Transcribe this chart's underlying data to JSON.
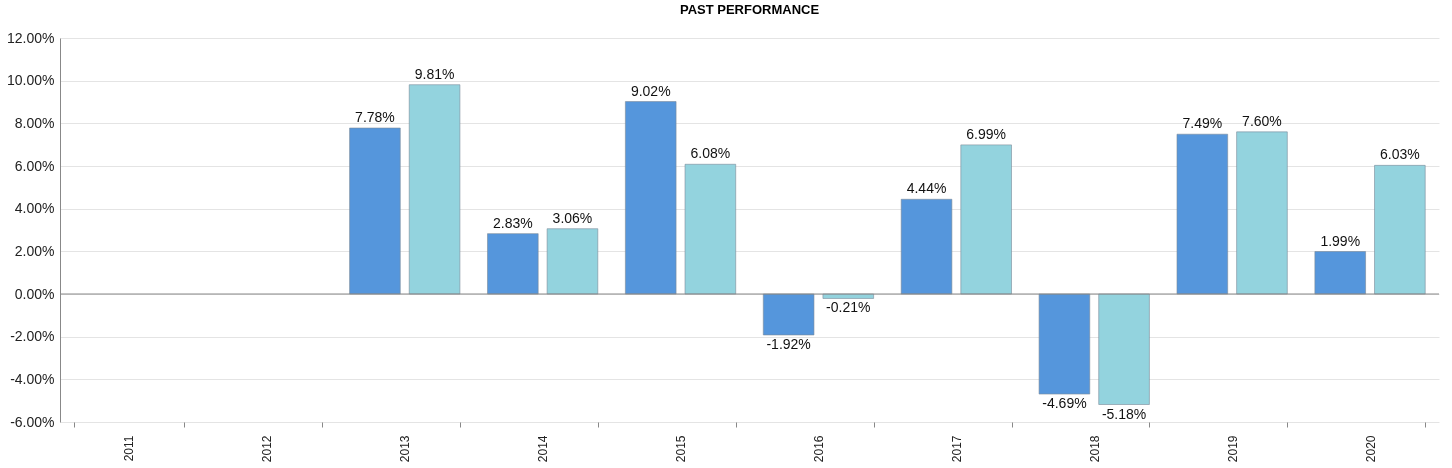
{
  "chart_data": {
    "type": "bar",
    "title": "PAST PERFORMANCE",
    "categories": [
      "2011",
      "2012",
      "2013",
      "2014",
      "2015",
      "2016",
      "2017",
      "2018",
      "2019",
      "2020"
    ],
    "series": [
      {
        "color": "#5596dc",
        "values": [
          null,
          null,
          7.78,
          2.83,
          9.02,
          -1.92,
          4.44,
          -4.69,
          7.49,
          1.99
        ],
        "value_labels": [
          null,
          null,
          "7.78%",
          "2.83%",
          "9.02%",
          "-1.92%",
          "4.44%",
          "-4.69%",
          "7.49%",
          "1.99%"
        ]
      },
      {
        "color": "#93d3de",
        "values": [
          null,
          null,
          9.81,
          3.06,
          6.08,
          -0.21,
          6.99,
          -5.18,
          7.6,
          6.03
        ],
        "value_labels": [
          null,
          null,
          "9.81%",
          "3.06%",
          "6.08%",
          "-0.21%",
          "6.99%",
          "-5.18%",
          "7.60%",
          "6.03%"
        ]
      }
    ],
    "ylim": [
      -6,
      12
    ],
    "yticks": [
      {
        "value": -6,
        "label": "-6.00%"
      },
      {
        "value": -4,
        "label": "-4.00%"
      },
      {
        "value": -2,
        "label": "-2.00%"
      },
      {
        "value": 0,
        "label": "0.00%"
      },
      {
        "value": 2,
        "label": "2.00%"
      },
      {
        "value": 4,
        "label": "4.00%"
      },
      {
        "value": 6,
        "label": "6.00%"
      },
      {
        "value": 8,
        "label": "8.00%"
      },
      {
        "value": 10,
        "label": "10.00%"
      },
      {
        "value": 12,
        "label": "12.00%"
      }
    ],
    "grid": "y",
    "legend": false
  }
}
